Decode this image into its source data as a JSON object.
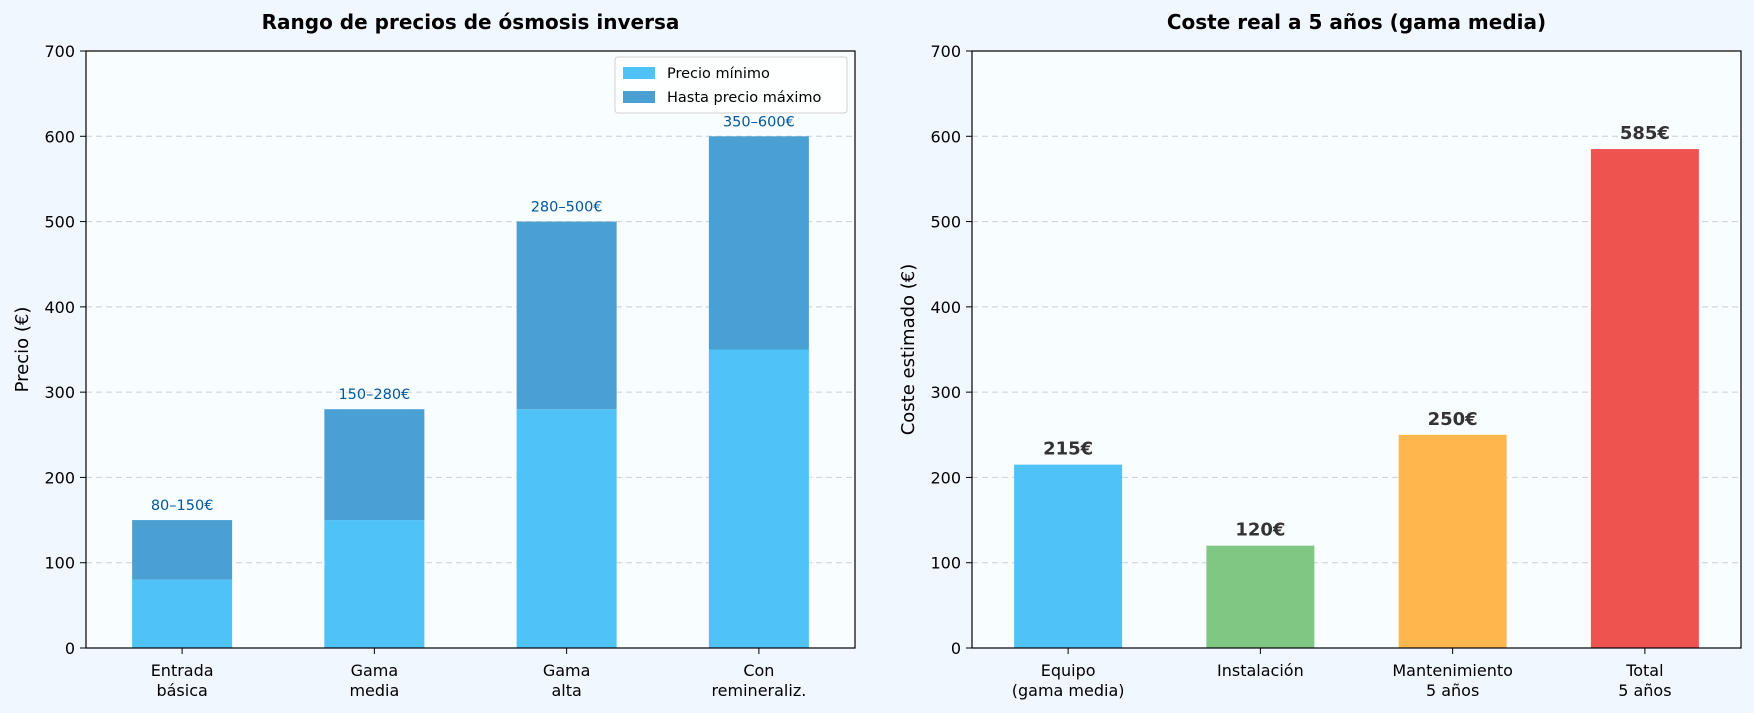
{
  "chart_data": [
    {
      "type": "bar",
      "stacked": true,
      "title": "Rango de precios de ósmosis inversa",
      "ylabel": "Precio (€)",
      "xlabel": "",
      "ylim": [
        0,
        700
      ],
      "yticks": [
        0,
        100,
        200,
        300,
        400,
        500,
        600,
        700
      ],
      "grid": "y-dashed",
      "legend_position": "top-right",
      "categories": [
        [
          "Entrada",
          "básica"
        ],
        [
          "Gama",
          "media"
        ],
        [
          "Gama",
          "alta"
        ],
        [
          "Con",
          "remineraliz."
        ]
      ],
      "series": [
        {
          "name": "Precio mínimo",
          "values": [
            80,
            150,
            280,
            350
          ],
          "color": "#4fc3f7"
        },
        {
          "name": "Hasta precio máximo",
          "values": [
            70,
            130,
            220,
            250
          ],
          "color": "#4a9fd3"
        }
      ],
      "range_labels": [
        "80–150€",
        "150–280€",
        "280–500€",
        "350–600€"
      ],
      "range_label_color": "#01579b"
    },
    {
      "type": "bar",
      "title": "Coste real a 5 años (gama media)",
      "ylabel": "Coste estimado (€)",
      "xlabel": "",
      "ylim": [
        0,
        700
      ],
      "yticks": [
        0,
        100,
        200,
        300,
        400,
        500,
        600,
        700
      ],
      "grid": "y-dashed",
      "categories": [
        [
          "Equipo",
          "(gama media)"
        ],
        [
          "Instalación"
        ],
        [
          "Mantenimiento",
          "5 años"
        ],
        [
          "Total",
          "5 años"
        ]
      ],
      "values": [
        215,
        120,
        250,
        585
      ],
      "colors": [
        "#4fc3f7",
        "#81c784",
        "#ffb74d",
        "#ef5350"
      ],
      "value_labels": [
        "215€",
        "120€",
        "250€",
        "585€"
      ]
    }
  ]
}
